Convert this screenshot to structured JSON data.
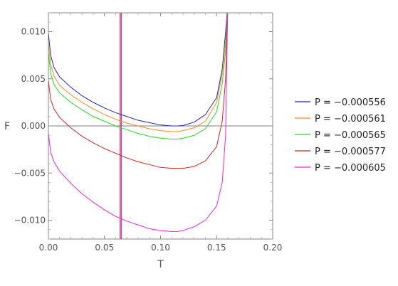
{
  "chart_data": {
    "type": "line",
    "xlabel": "T",
    "ylabel": "F",
    "xlim": [
      0.0,
      0.2
    ],
    "ylim": [
      -0.012,
      0.012
    ],
    "x_ticks": [
      "0.00",
      "0.05",
      "0.10",
      "0.15",
      "0.20"
    ],
    "y_ticks": [
      "0.010",
      "0.005",
      "0.000",
      "−0.005",
      "−0.010"
    ],
    "grid": false,
    "legend_position": "right",
    "vertical_lines": [
      {
        "x": 0.064,
        "color": "#cc2255"
      },
      {
        "x": 0.065,
        "color": "#cc33cc"
      }
    ],
    "series": [
      {
        "name": "P = −0.000556",
        "color": "#2222cc",
        "x": [
          0.0,
          0.002,
          0.005,
          0.01,
          0.02,
          0.03,
          0.04,
          0.05,
          0.06,
          0.07,
          0.08,
          0.09,
          0.1,
          0.11,
          0.115,
          0.12,
          0.13,
          0.14,
          0.15,
          0.155,
          0.158,
          0.16
        ],
        "y": [
          0.0098,
          0.0075,
          0.0062,
          0.0052,
          0.0041,
          0.0032,
          0.0025,
          0.0019,
          0.0014,
          0.001,
          0.0006,
          0.00035,
          0.0001,
          0.0,
          0.0,
          5e-05,
          0.0004,
          0.0012,
          0.003,
          0.006,
          0.01,
          0.013
        ]
      },
      {
        "name": "P = −0.000561",
        "color": "#ff8a1f",
        "x": [
          0.0,
          0.002,
          0.005,
          0.01,
          0.02,
          0.03,
          0.04,
          0.05,
          0.06,
          0.07,
          0.08,
          0.09,
          0.1,
          0.11,
          0.115,
          0.12,
          0.13,
          0.14,
          0.15,
          0.155,
          0.158,
          0.16
        ],
        "y": [
          0.0088,
          0.0065,
          0.0053,
          0.0043,
          0.0033,
          0.0025,
          0.0018,
          0.0012,
          0.0007,
          0.0003,
          0.0,
          -0.0003,
          -0.0005,
          -0.0006,
          -0.0006,
          -0.0005,
          -0.0002,
          0.0005,
          0.0025,
          0.0055,
          0.009,
          0.013
        ]
      },
      {
        "name": "P = −0.000565",
        "color": "#22dd22",
        "x": [
          0.0,
          0.002,
          0.005,
          0.01,
          0.02,
          0.03,
          0.04,
          0.05,
          0.06,
          0.07,
          0.08,
          0.09,
          0.1,
          0.11,
          0.115,
          0.12,
          0.13,
          0.14,
          0.15,
          0.155,
          0.158,
          0.16
        ],
        "y": [
          0.0078,
          0.0056,
          0.0044,
          0.0035,
          0.0025,
          0.0017,
          0.001,
          0.0005,
          0.0,
          -0.0004,
          -0.0008,
          -0.0011,
          -0.0013,
          -0.0014,
          -0.0014,
          -0.0013,
          -0.001,
          -0.0003,
          0.0015,
          0.0045,
          0.008,
          0.013
        ]
      },
      {
        "name": "P = −0.000577",
        "color": "#dd2222",
        "x": [
          0.0,
          0.002,
          0.005,
          0.01,
          0.02,
          0.03,
          0.04,
          0.05,
          0.06,
          0.07,
          0.08,
          0.09,
          0.1,
          0.11,
          0.115,
          0.12,
          0.13,
          0.14,
          0.15,
          0.155,
          0.158,
          0.16
        ],
        "y": [
          0.0048,
          0.0028,
          0.0018,
          0.0009,
          -0.0002,
          -0.0011,
          -0.0018,
          -0.0024,
          -0.0029,
          -0.0034,
          -0.0038,
          -0.0041,
          -0.0044,
          -0.0045,
          -0.0045,
          -0.0045,
          -0.0043,
          -0.0037,
          -0.0022,
          0.0005,
          0.005,
          0.013
        ]
      },
      {
        "name": "P = −0.000605",
        "color": "#ee22ee",
        "x": [
          0.0,
          0.002,
          0.005,
          0.01,
          0.02,
          0.03,
          0.04,
          0.05,
          0.06,
          0.07,
          0.08,
          0.09,
          0.1,
          0.11,
          0.115,
          0.12,
          0.13,
          0.14,
          0.15,
          0.155,
          0.158,
          0.16
        ],
        "y": [
          -0.0008,
          -0.0028,
          -0.0038,
          -0.0048,
          -0.0061,
          -0.0072,
          -0.0081,
          -0.0089,
          -0.0096,
          -0.0101,
          -0.0105,
          -0.0109,
          -0.0111,
          -0.0112,
          -0.0112,
          -0.0111,
          -0.0107,
          -0.01,
          -0.0085,
          -0.006,
          -0.001,
          0.013
        ]
      }
    ]
  }
}
